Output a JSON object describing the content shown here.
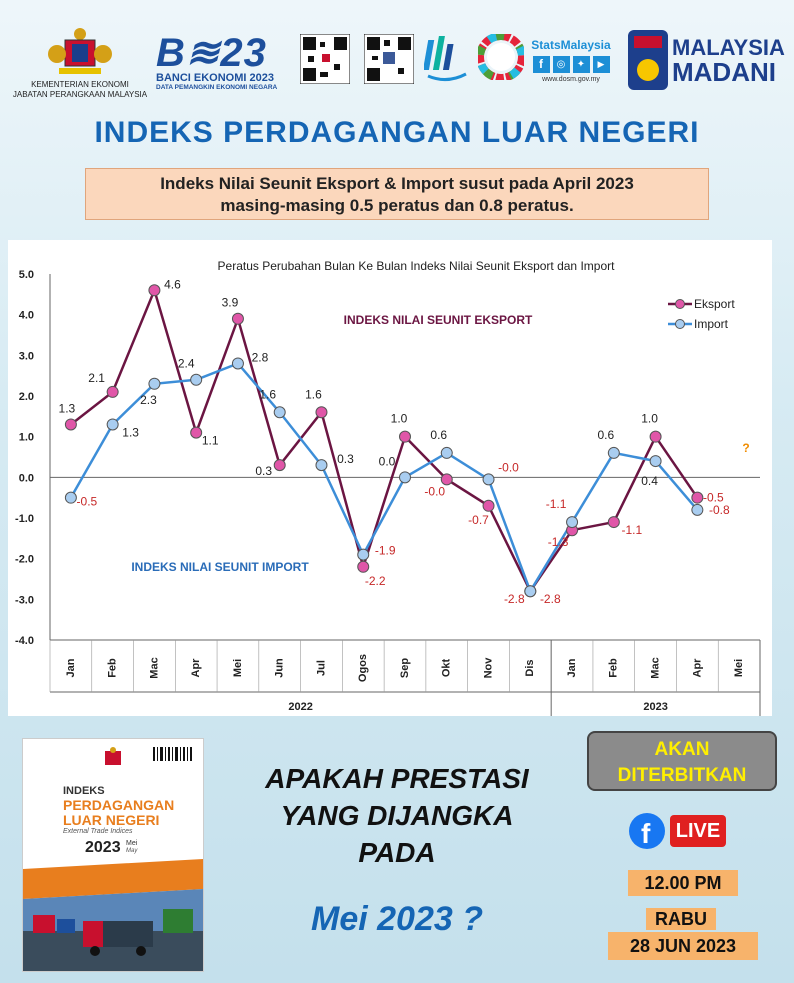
{
  "header": {
    "agency_line1": "KEMENTERIAN EKONOMI",
    "agency_line2": "JABATAN PERANGKAAN MALAYSIA",
    "census_logo": "BANCI EKONOMI 2023",
    "census_tagline": "DATA PEMANGKIN EKONOMI NEGARA",
    "stats_brand": "StatsMalaysia",
    "stats_url": "www.dosm.gov.my",
    "madani_line1": "MALAYSIA",
    "madani_line2": "MADANI"
  },
  "title": "INDEKS PERDAGANGAN LUAR NEGERI",
  "headline": {
    "line1": "Indeks Nilai Seunit Eksport & Import susut pada April 2023",
    "line2": "masing-masing 0.5 peratus dan 0.8 peratus."
  },
  "chart_data": {
    "type": "line",
    "title": "Peratus Perubahan Bulan Ke Bulan Indeks Nilai Seunit Eksport dan Import",
    "categories": [
      "Jan",
      "Feb",
      "Mac",
      "Apr",
      "Mei",
      "Jun",
      "Jul",
      "Ogos",
      "Sep",
      "Okt",
      "Nov",
      "Dis",
      "Jan",
      "Feb",
      "Mac",
      "Apr",
      "Mei"
    ],
    "year_groups": [
      {
        "label": "2022",
        "count": 12
      },
      {
        "label": "2023",
        "count": 5
      }
    ],
    "ylim": [
      -4.0,
      5.0
    ],
    "yticks": [
      "5.0",
      "4.0",
      "3.0",
      "2.0",
      "1.0",
      "0.0",
      "-1.0",
      "-2.0",
      "-3.0",
      "-4.0"
    ],
    "series": [
      {
        "name": "Eksport",
        "color": "#6b1542",
        "marker": "#e056a8",
        "values": [
          1.3,
          2.1,
          4.6,
          1.1,
          3.9,
          0.3,
          1.6,
          -2.2,
          1.0,
          -0.05,
          -0.7,
          -2.8,
          -1.3,
          -1.1,
          1.0,
          -0.5,
          null
        ],
        "labels": [
          "1.3",
          "2.1",
          "4.6",
          "1.1",
          "3.9",
          "0.3",
          "1.6",
          "-2.2",
          "1.0",
          "-0.0",
          "-0.7",
          "-2.8",
          "-1.3",
          "-1.1",
          "1.0",
          "-0.5",
          ""
        ]
      },
      {
        "name": "Import",
        "color": "#3d8ed8",
        "marker": "#a9cdf0",
        "values": [
          -0.5,
          1.3,
          2.3,
          2.4,
          2.8,
          1.6,
          0.3,
          -1.9,
          0.0,
          0.6,
          -0.05,
          -2.8,
          -1.1,
          0.6,
          0.4,
          -0.8,
          null
        ],
        "labels": [
          "-0.5",
          "1.3",
          "2.3",
          "2.4",
          "2.8",
          "1.6",
          "0.3",
          "-1.9",
          "0.0",
          "0.6",
          "-0.0",
          "-2.8",
          "-1.1",
          "0.6",
          "0.4",
          "-0.8",
          ""
        ]
      }
    ],
    "annotations": {
      "export": "INDEKS NILAI SEUNIT EKSPORT",
      "import": "INDEKS NILAI SEUNIT IMPORT",
      "pending": "?"
    },
    "legend_position": "top-right"
  },
  "cover": {
    "title1": "INDEKS",
    "title2": "PERDAGANGAN",
    "title3": "LUAR NEGERI",
    "subtitle": "External Trade Indices",
    "year": "2023",
    "month": "Mei",
    "month_en": "May"
  },
  "promo": {
    "line1": "APAKAH PRESTASI",
    "line2": "YANG DIJANGKA",
    "line3": "PADA",
    "line4": "Mei 2023 ?",
    "badge1": "AKAN",
    "badge2": "DITERBITKAN",
    "live": "LIVE",
    "time": "12.00 PM",
    "day": "RABU",
    "date": "28 JUN 2023"
  },
  "colors": {
    "title": "#1565b4",
    "export_line": "#6b1542",
    "import_line": "#3d8ed8",
    "badge_text": "#ffef00"
  }
}
